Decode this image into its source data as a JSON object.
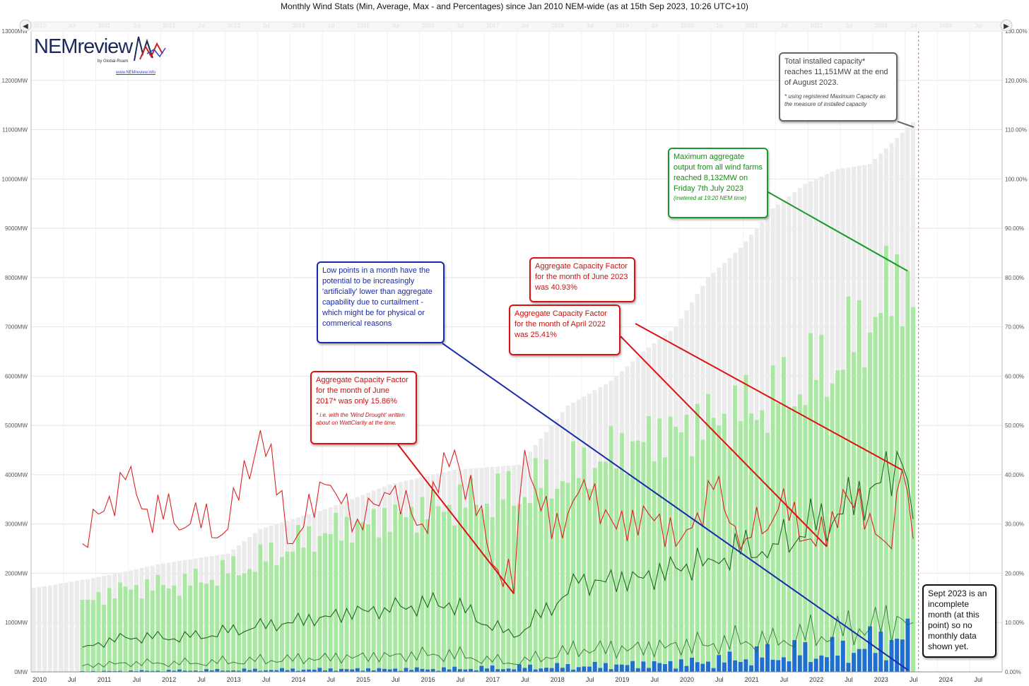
{
  "title": "Monthly Wind Stats (Min, Average, Max - and Percentages) since Jan 2010 NEM-wide (as at 15th Sep 2023, 10:26 UTC+10)",
  "logo": {
    "brand": "NEMreview",
    "tagline": "by Global-Roam",
    "url": "www.NEMreview.info"
  },
  "annotations": {
    "capacity": {
      "text": "Total installed capacity* reaches 11,151MW at the end of August 2023.",
      "note": "* using registered Maximum Capacity as the measure of installed capacity"
    },
    "max_output": {
      "text": "Maximum aggregate output from all wind farms reached 8,132MW on Friday 7th July 2023",
      "note": "(metered at 19:20 NEM time)"
    },
    "low_points": {
      "text": "Low points in a month have the potential to be increasingly 'artificially' lower than aggregate capability due to curtailment - which might be for physical or commerical reasons"
    },
    "cf_jun2023": {
      "text": "Aggregate Capacity Factor for the month of June 2023 was 40.93%"
    },
    "cf_apr2022": {
      "text": "Aggregate Capacity Factor for the month of April 2022 was 25.41%"
    },
    "cf_jun2017": {
      "text": "Aggregate Capacity Factor for the month of June 2017* was only 15.86%",
      "note": "* i.e. with the 'Wind Drought' written about on WattClarity at the time."
    },
    "sept2023": {
      "text": "Sept 2023 is an incomplete month (at this point) so no monthly data shown yet."
    }
  },
  "colors": {
    "capacity": "#ebebeb",
    "max": "#a8e8a0",
    "avg_line": "#1a6a1a",
    "min_bars": "#1f6fd0",
    "cf_line": "#dd2222",
    "blue_box": "#1a2aaa",
    "green_box": "#1a9a2a",
    "red_box": "#dd1111",
    "grey_box": "#666666"
  },
  "chart_data": {
    "type": "bar",
    "x_start": "2010-01",
    "x_end": "2024-12",
    "left_axis": {
      "unit": "MW",
      "range": [
        0,
        13000
      ],
      "ticks": [
        "0MW",
        "1000MW",
        "2000MW",
        "3000MW",
        "4000MW",
        "5000MW",
        "6000MW",
        "7000MW",
        "8000MW",
        "9000MW",
        "10000MW",
        "11000MW",
        "12000MW",
        "13000MW"
      ]
    },
    "right_axis": {
      "unit": "%",
      "range": [
        0,
        130
      ],
      "ticks": [
        "0.00%",
        "10.00%",
        "20.00%",
        "30.00%",
        "40.00%",
        "50.00%",
        "60.00%",
        "70.00%",
        "80.00%",
        "90.00%",
        "100.00%",
        "110.00%",
        "120.00%",
        "130.00%"
      ]
    },
    "x_ticks": [
      "2010",
      "Jul",
      "2011",
      "Jul",
      "2012",
      "Jul",
      "2013",
      "Jul",
      "2014",
      "Jul",
      "2015",
      "Jul",
      "2016",
      "Jul",
      "2017",
      "Jul",
      "2018",
      "Jul",
      "2019",
      "Jul",
      "2020",
      "Jul",
      "2021",
      "Jul",
      "2022",
      "Jul",
      "2023",
      "Jul",
      "2024",
      "Jul"
    ],
    "capacity_keypoints": [
      [
        "2010-01",
        1700
      ],
      [
        "2010-12",
        1900
      ],
      [
        "2012-01",
        2200
      ],
      [
        "2013-01",
        2400
      ],
      [
        "2013-07",
        2900
      ],
      [
        "2014-07",
        3300
      ],
      [
        "2015-07",
        3800
      ],
      [
        "2016-07",
        4100
      ],
      [
        "2017-07",
        4200
      ],
      [
        "2018-04",
        5400
      ],
      [
        "2018-12",
        5900
      ],
      [
        "2019-06",
        6500
      ],
      [
        "2019-12",
        7000
      ],
      [
        "2020-06",
        8000
      ],
      [
        "2020-12",
        8600
      ],
      [
        "2021-06",
        9400
      ],
      [
        "2021-12",
        9900
      ],
      [
        "2022-06",
        10200
      ],
      [
        "2022-12",
        10300
      ],
      [
        "2023-08",
        11151
      ]
    ],
    "max_keypoints": [
      [
        "2010-10",
        1400
      ],
      [
        "2011-06",
        1700
      ],
      [
        "2012-06",
        1800
      ],
      [
        "2013-06",
        2200
      ],
      [
        "2014-06",
        2800
      ],
      [
        "2015-06",
        3100
      ],
      [
        "2016-06",
        3400
      ],
      [
        "2017-06",
        3600
      ],
      [
        "2018-06",
        4100
      ],
      [
        "2019-06",
        4700
      ],
      [
        "2020-06",
        5100
      ],
      [
        "2021-06",
        5500
      ],
      [
        "2022-06",
        6300
      ],
      [
        "2023-07",
        8132
      ],
      [
        "2023-08",
        7400
      ]
    ],
    "average_keypoints": [
      [
        "2010-10",
        500
      ],
      [
        "2011-06",
        700
      ],
      [
        "2012-06",
        700
      ],
      [
        "2013-06",
        900
      ],
      [
        "2014-06",
        1100
      ],
      [
        "2015-06",
        1300
      ],
      [
        "2016-06",
        1400
      ],
      [
        "2017-06",
        700
      ],
      [
        "2018-06",
        1800
      ],
      [
        "2019-06",
        1900
      ],
      [
        "2020-06",
        2300
      ],
      [
        "2021-06",
        2600
      ],
      [
        "2022-06",
        3200
      ],
      [
        "2023-06",
        4200
      ],
      [
        "2023-08",
        3100
      ]
    ],
    "min_keypoints": [
      [
        "2010-10",
        10
      ],
      [
        "2012-06",
        30
      ],
      [
        "2014-06",
        50
      ],
      [
        "2016-06",
        60
      ],
      [
        "2018-06",
        110
      ],
      [
        "2020-06",
        200
      ],
      [
        "2021-06",
        350
      ],
      [
        "2022-06",
        400
      ],
      [
        "2023-07",
        700
      ]
    ],
    "capacity_factor_pct": [
      [
        "2010-10",
        26
      ],
      [
        "2011-01",
        32
      ],
      [
        "2011-06",
        39
      ],
      [
        "2011-10",
        33
      ],
      [
        "2012-06",
        30
      ],
      [
        "2013-01",
        29
      ],
      [
        "2013-07",
        49
      ],
      [
        "2014-01",
        26
      ],
      [
        "2014-07",
        38
      ],
      [
        "2015-01",
        31
      ],
      [
        "2015-07",
        36
      ],
      [
        "2016-01",
        30
      ],
      [
        "2016-07",
        45
      ],
      [
        "2017-01",
        26
      ],
      [
        "2017-06",
        15.86
      ],
      [
        "2017-08",
        45
      ],
      [
        "2018-01",
        27
      ],
      [
        "2018-07",
        39
      ],
      [
        "2019-01",
        29
      ],
      [
        "2019-07",
        32
      ],
      [
        "2020-01",
        27
      ],
      [
        "2020-07",
        37
      ],
      [
        "2021-01",
        27
      ],
      [
        "2021-07",
        33
      ],
      [
        "2022-04",
        25.41
      ],
      [
        "2022-07",
        37
      ],
      [
        "2023-01",
        28
      ],
      [
        "2023-04",
        25
      ],
      [
        "2023-06",
        40.93
      ],
      [
        "2023-08",
        27
      ]
    ],
    "grid": true,
    "legend": "none"
  }
}
